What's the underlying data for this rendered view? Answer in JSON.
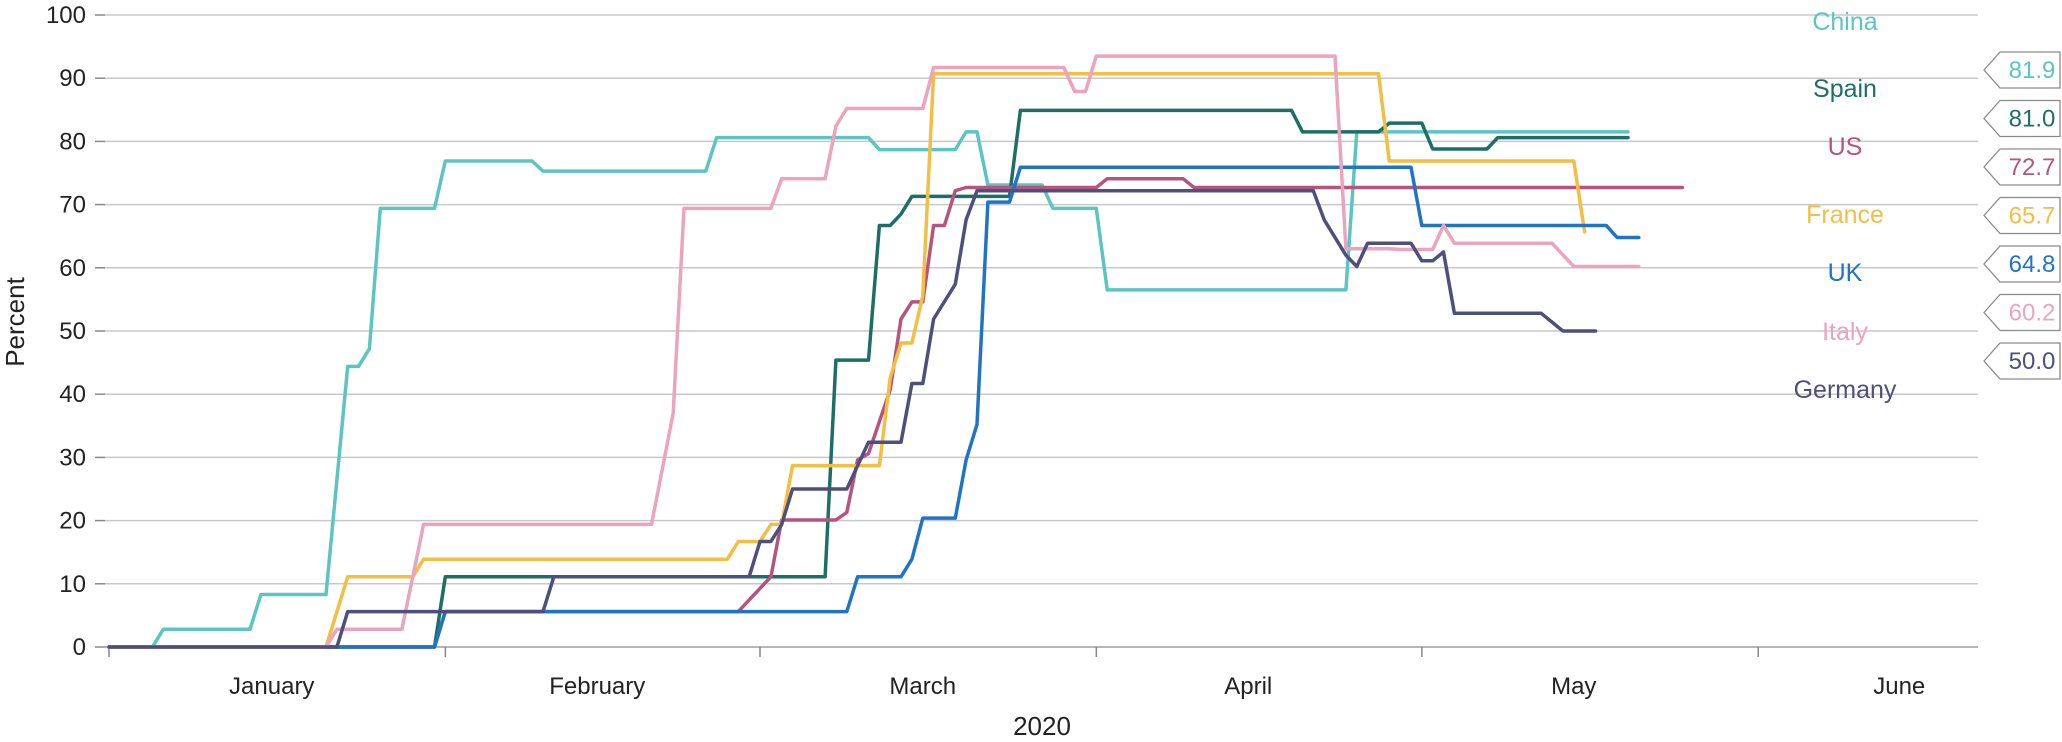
{
  "chart_data": {
    "type": "line",
    "title": "",
    "xlabel": "2020",
    "ylabel": "Percent",
    "ylim": [
      0,
      100
    ],
    "xlim": [
      "2020-01-01",
      "2020-06-15"
    ],
    "yticks": [
      0,
      10,
      20,
      30,
      40,
      50,
      60,
      70,
      80,
      90,
      100
    ],
    "month_labels": [
      {
        "label": "January",
        "date": "2020-01-16"
      },
      {
        "label": "February",
        "date": "2020-02-15"
      },
      {
        "label": "March",
        "date": "2020-03-16"
      },
      {
        "label": "April",
        "date": "2020-04-15"
      },
      {
        "label": "May",
        "date": "2020-05-15"
      },
      {
        "label": "June",
        "date": "2020-06-14"
      }
    ],
    "month_ticks": [
      "2020-01-01",
      "2020-02-01",
      "2020-03-01",
      "2020-04-01",
      "2020-05-01",
      "2020-06-01"
    ],
    "grid": true,
    "legend": "right",
    "series": [
      {
        "name": "China",
        "color": "#5cc5c2",
        "end_value": "81.9",
        "points": [
          [
            "2020-01-01",
            0
          ],
          [
            "2020-01-05",
            0
          ],
          [
            "2020-01-06",
            2.8
          ],
          [
            "2020-01-14",
            2.8
          ],
          [
            "2020-01-15",
            8.3
          ],
          [
            "2020-01-21",
            8.3
          ],
          [
            "2020-01-23",
            44.4
          ],
          [
            "2020-01-24",
            44.4
          ],
          [
            "2020-01-25",
            47.2
          ],
          [
            "2020-01-26",
            69.4
          ],
          [
            "2020-01-31",
            69.4
          ],
          [
            "2020-02-01",
            76.9
          ],
          [
            "2020-02-09",
            76.9
          ],
          [
            "2020-02-10",
            75.3
          ],
          [
            "2020-02-25",
            75.3
          ],
          [
            "2020-02-26",
            80.6
          ],
          [
            "2020-03-11",
            80.6
          ],
          [
            "2020-03-12",
            78.7
          ],
          [
            "2020-03-19",
            78.7
          ],
          [
            "2020-03-20",
            81.5
          ],
          [
            "2020-03-21",
            81.5
          ],
          [
            "2020-03-22",
            73.1
          ],
          [
            "2020-03-27",
            73.1
          ],
          [
            "2020-03-28",
            69.4
          ],
          [
            "2020-04-01",
            69.4
          ],
          [
            "2020-04-02",
            56.5
          ],
          [
            "2020-04-24",
            56.5
          ],
          [
            "2020-04-25",
            81.5
          ],
          [
            "2020-05-20",
            81.5
          ]
        ]
      },
      {
        "name": "Spain",
        "color": "#1e6e68",
        "end_value": "81.0",
        "points": [
          [
            "2020-01-01",
            0
          ],
          [
            "2020-01-22",
            0
          ],
          [
            "2020-01-23",
            0
          ],
          [
            "2020-01-31",
            0
          ],
          [
            "2020-02-01",
            11.1
          ],
          [
            "2020-03-07",
            11.1
          ],
          [
            "2020-03-08",
            45.4
          ],
          [
            "2020-03-11",
            45.4
          ],
          [
            "2020-03-12",
            66.7
          ],
          [
            "2020-03-13",
            66.7
          ],
          [
            "2020-03-14",
            68.5
          ],
          [
            "2020-03-15",
            71.3
          ],
          [
            "2020-03-24",
            71.3
          ],
          [
            "2020-03-25",
            84.9
          ],
          [
            "2020-04-19",
            84.9
          ],
          [
            "2020-04-20",
            81.5
          ],
          [
            "2020-04-27",
            81.5
          ],
          [
            "2020-04-28",
            82.9
          ],
          [
            "2020-05-01",
            82.9
          ],
          [
            "2020-05-02",
            78.8
          ],
          [
            "2020-05-07",
            78.8
          ],
          [
            "2020-05-08",
            80.6
          ],
          [
            "2020-05-20",
            80.6
          ]
        ]
      },
      {
        "name": "US",
        "color": "#b5557d",
        "end_value": "72.7",
        "points": [
          [
            "2020-01-01",
            0
          ],
          [
            "2020-01-31",
            0
          ],
          [
            "2020-02-01",
            5.6
          ],
          [
            "2020-02-28",
            5.6
          ],
          [
            "2020-03-02",
            11.1
          ],
          [
            "2020-03-03",
            20.1
          ],
          [
            "2020-03-08",
            20.1
          ],
          [
            "2020-03-09",
            21.3
          ],
          [
            "2020-03-10",
            29.6
          ],
          [
            "2020-03-11",
            30.6
          ],
          [
            "2020-03-13",
            40.7
          ],
          [
            "2020-03-14",
            51.9
          ],
          [
            "2020-03-15",
            54.6
          ],
          [
            "2020-03-16",
            54.6
          ],
          [
            "2020-03-17",
            66.7
          ],
          [
            "2020-03-18",
            66.7
          ],
          [
            "2020-03-19",
            72.2
          ],
          [
            "2020-03-20",
            72.7
          ],
          [
            "2020-03-26",
            72.7
          ],
          [
            "2020-04-01",
            72.7
          ],
          [
            "2020-04-02",
            74.1
          ],
          [
            "2020-04-09",
            74.1
          ],
          [
            "2020-04-10",
            72.7
          ],
          [
            "2020-05-25",
            72.7
          ]
        ]
      },
      {
        "name": "France",
        "color": "#f2be44",
        "end_value": "65.7",
        "points": [
          [
            "2020-01-01",
            0
          ],
          [
            "2020-01-21",
            0
          ],
          [
            "2020-01-23",
            11.1
          ],
          [
            "2020-01-29",
            11.1
          ],
          [
            "2020-01-30",
            13.9
          ],
          [
            "2020-02-27",
            13.9
          ],
          [
            "2020-02-28",
            16.7
          ],
          [
            "2020-03-01",
            16.7
          ],
          [
            "2020-03-02",
            19.4
          ],
          [
            "2020-03-03",
            19.4
          ],
          [
            "2020-03-04",
            28.7
          ],
          [
            "2020-03-12",
            28.7
          ],
          [
            "2020-03-13",
            42.6
          ],
          [
            "2020-03-14",
            48.1
          ],
          [
            "2020-03-15",
            48.1
          ],
          [
            "2020-03-16",
            55.6
          ],
          [
            "2020-03-17",
            90.7
          ],
          [
            "2020-04-27",
            90.7
          ],
          [
            "2020-04-28",
            76.9
          ],
          [
            "2020-05-15",
            76.9
          ],
          [
            "2020-05-16",
            65.7
          ]
        ]
      },
      {
        "name": "UK",
        "color": "#1f74c4",
        "end_value": "64.8",
        "points": [
          [
            "2020-01-01",
            0
          ],
          [
            "2020-01-31",
            0
          ],
          [
            "2020-02-01",
            5.6
          ],
          [
            "2020-03-09",
            5.6
          ],
          [
            "2020-03-10",
            11.1
          ],
          [
            "2020-03-14",
            11.1
          ],
          [
            "2020-03-15",
            13.9
          ],
          [
            "2020-03-16",
            20.4
          ],
          [
            "2020-03-19",
            20.4
          ],
          [
            "2020-03-20",
            29.6
          ],
          [
            "2020-03-21",
            35.2
          ],
          [
            "2020-03-22",
            70.4
          ],
          [
            "2020-03-24",
            70.4
          ],
          [
            "2020-03-25",
            75.9
          ],
          [
            "2020-04-30",
            75.9
          ],
          [
            "2020-05-01",
            66.7
          ],
          [
            "2020-05-18",
            66.7
          ],
          [
            "2020-05-19",
            64.8
          ],
          [
            "2020-05-21",
            64.8
          ]
        ]
      },
      {
        "name": "Italy",
        "color": "#eaa4bd",
        "end_value": "60.2",
        "points": [
          [
            "2020-01-01",
            0
          ],
          [
            "2020-01-21",
            0
          ],
          [
            "2020-01-22",
            2.8
          ],
          [
            "2020-01-28",
            2.8
          ],
          [
            "2020-01-30",
            19.4
          ],
          [
            "2020-02-20",
            19.4
          ],
          [
            "2020-02-22",
            37.0
          ],
          [
            "2020-02-23",
            69.4
          ],
          [
            "2020-03-02",
            69.4
          ],
          [
            "2020-03-03",
            74.1
          ],
          [
            "2020-03-07",
            74.1
          ],
          [
            "2020-03-08",
            82.4
          ],
          [
            "2020-03-09",
            85.2
          ],
          [
            "2020-03-16",
            85.2
          ],
          [
            "2020-03-17",
            91.7
          ],
          [
            "2020-03-29",
            91.7
          ],
          [
            "2020-03-30",
            87.9
          ],
          [
            "2020-03-31",
            87.9
          ],
          [
            "2020-04-01",
            93.5
          ],
          [
            "2020-04-23",
            93.5
          ],
          [
            "2020-04-24",
            63.0
          ],
          [
            "2020-04-28",
            63.0
          ],
          [
            "2020-04-29",
            62.9
          ],
          [
            "2020-05-02",
            62.9
          ],
          [
            "2020-05-03",
            66.7
          ],
          [
            "2020-05-04",
            63.9
          ],
          [
            "2020-05-13",
            63.9
          ],
          [
            "2020-05-15",
            60.2
          ],
          [
            "2020-05-21",
            60.2
          ]
        ]
      },
      {
        "name": "Germany",
        "color": "#4e4f7b",
        "end_value": "50.0",
        "points": [
          [
            "2020-01-01",
            0
          ],
          [
            "2020-01-22",
            0
          ],
          [
            "2020-01-23",
            5.6
          ],
          [
            "2020-02-10",
            5.6
          ],
          [
            "2020-02-11",
            11.1
          ],
          [
            "2020-02-29",
            11.1
          ],
          [
            "2020-03-01",
            16.7
          ],
          [
            "2020-03-02",
            16.7
          ],
          [
            "2020-03-03",
            19.4
          ],
          [
            "2020-03-04",
            25.0
          ],
          [
            "2020-03-09",
            25.0
          ],
          [
            "2020-03-11",
            32.4
          ],
          [
            "2020-03-13",
            32.4
          ],
          [
            "2020-03-14",
            32.4
          ],
          [
            "2020-03-15",
            41.7
          ],
          [
            "2020-03-16",
            41.7
          ],
          [
            "2020-03-17",
            51.9
          ],
          [
            "2020-03-19",
            57.4
          ],
          [
            "2020-03-20",
            67.6
          ],
          [
            "2020-03-21",
            72.2
          ],
          [
            "2020-04-21",
            72.2
          ],
          [
            "2020-04-22",
            67.6
          ],
          [
            "2020-04-24",
            62.0
          ],
          [
            "2020-04-25",
            60.2
          ],
          [
            "2020-04-26",
            63.9
          ],
          [
            "2020-04-30",
            63.9
          ],
          [
            "2020-05-01",
            61.1
          ],
          [
            "2020-05-02",
            61.1
          ],
          [
            "2020-05-03",
            62.5
          ],
          [
            "2020-05-04",
            52.8
          ],
          [
            "2020-05-12",
            52.8
          ],
          [
            "2020-05-14",
            50.0
          ],
          [
            "2020-05-17",
            50.0
          ]
        ]
      }
    ]
  }
}
